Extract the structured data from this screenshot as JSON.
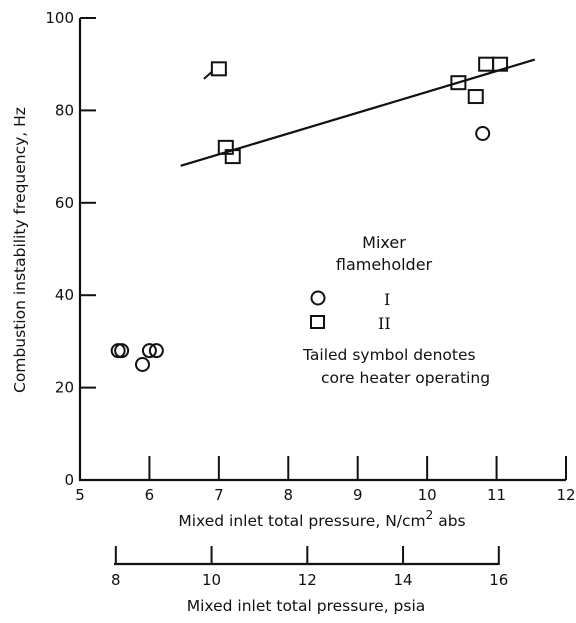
{
  "chart_data": {
    "type": "scatter",
    "xlabel": "Mixed inlet total pressure, N/cm",
    "xlabel_sup": "2",
    "xlabel_suffix": " abs",
    "ylabel": "Combustion instability frequency, Hz",
    "xlim": [
      5,
      12
    ],
    "ylim": [
      0,
      100
    ],
    "x_ticks": [
      5,
      6,
      7,
      8,
      9,
      10,
      11,
      12
    ],
    "y_ticks": [
      0,
      20,
      40,
      60,
      80,
      100
    ],
    "secondary_axis": {
      "label": "Mixed inlet total pressure, psia",
      "ticks": [
        8,
        10,
        12,
        14,
        16
      ],
      "conversion_to_primary": 0.6895
    },
    "legend": {
      "title_line1": "Mixer",
      "title_line2": "flameholder",
      "entries": [
        {
          "symbol": "circle",
          "label": "I"
        },
        {
          "symbol": "square",
          "label": "II"
        }
      ],
      "note_line1": "Tailed symbol denotes",
      "note_line2": "core heater operating"
    },
    "series": [
      {
        "name": "I",
        "marker": "circle",
        "points": [
          {
            "x": 5.55,
            "y": 28
          },
          {
            "x": 5.6,
            "y": 28
          },
          {
            "x": 5.9,
            "y": 25
          },
          {
            "x": 6.0,
            "y": 28
          },
          {
            "x": 6.1,
            "y": 28
          },
          {
            "x": 10.8,
            "y": 75
          }
        ]
      },
      {
        "name": "II",
        "marker": "square",
        "points": [
          {
            "x": 7.0,
            "y": 89,
            "tailed": true
          },
          {
            "x": 7.1,
            "y": 72
          },
          {
            "x": 7.2,
            "y": 70
          },
          {
            "x": 10.45,
            "y": 86
          },
          {
            "x": 10.7,
            "y": 83
          },
          {
            "x": 10.85,
            "y": 90
          },
          {
            "x": 11.05,
            "y": 90
          }
        ]
      }
    ],
    "fit_line": {
      "x1": 6.45,
      "y1": 68,
      "x2": 11.55,
      "y2": 91
    }
  }
}
